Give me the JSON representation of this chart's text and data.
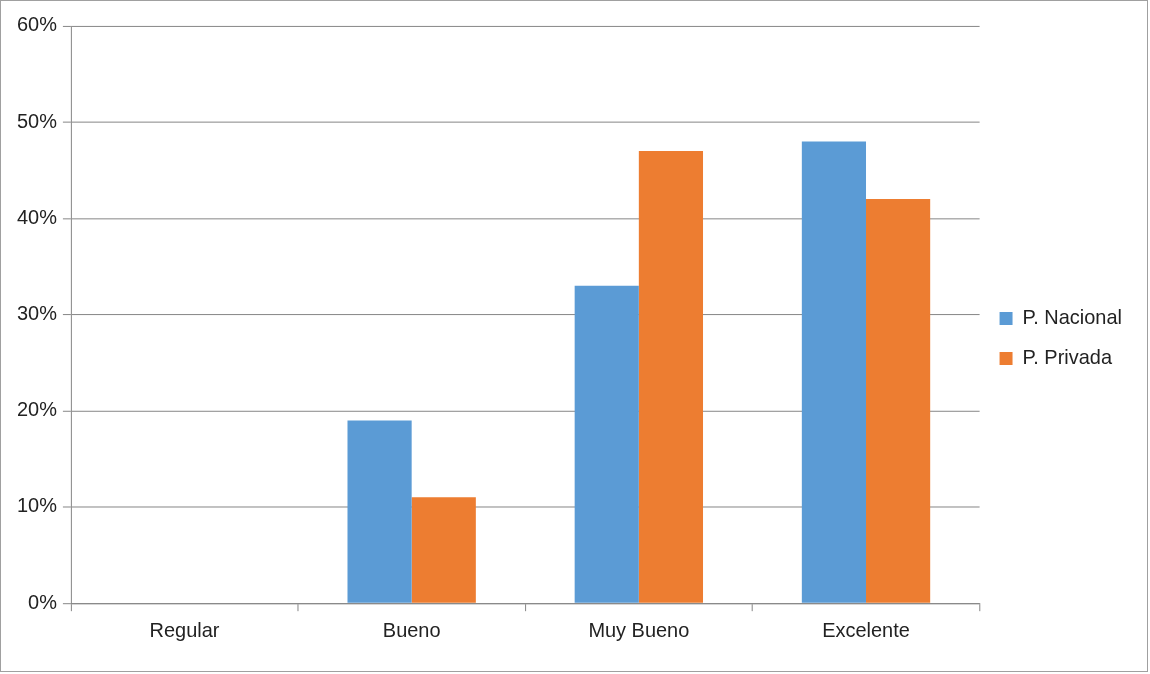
{
  "chart_data": {
    "type": "bar",
    "categories": [
      "Regular",
      "Bueno",
      "Muy Bueno",
      "Excelente"
    ],
    "series": [
      {
        "name": "P. Nacional",
        "color": "#5b9bd5",
        "values": [
          0,
          19,
          33,
          48
        ]
      },
      {
        "name": "P. Privada",
        "color": "#ed7d31",
        "values": [
          0,
          11,
          47,
          42
        ]
      }
    ],
    "ylim": [
      0,
      60
    ],
    "yticks": [
      {
        "value": 0,
        "label": "0%"
      },
      {
        "value": 10,
        "label": "10%"
      },
      {
        "value": 20,
        "label": "20%"
      },
      {
        "value": 30,
        "label": "30%"
      },
      {
        "value": 40,
        "label": "40%"
      },
      {
        "value": 50,
        "label": "50%"
      },
      {
        "value": 60,
        "label": "60%"
      }
    ],
    "grid": "y",
    "legend": "right"
  }
}
